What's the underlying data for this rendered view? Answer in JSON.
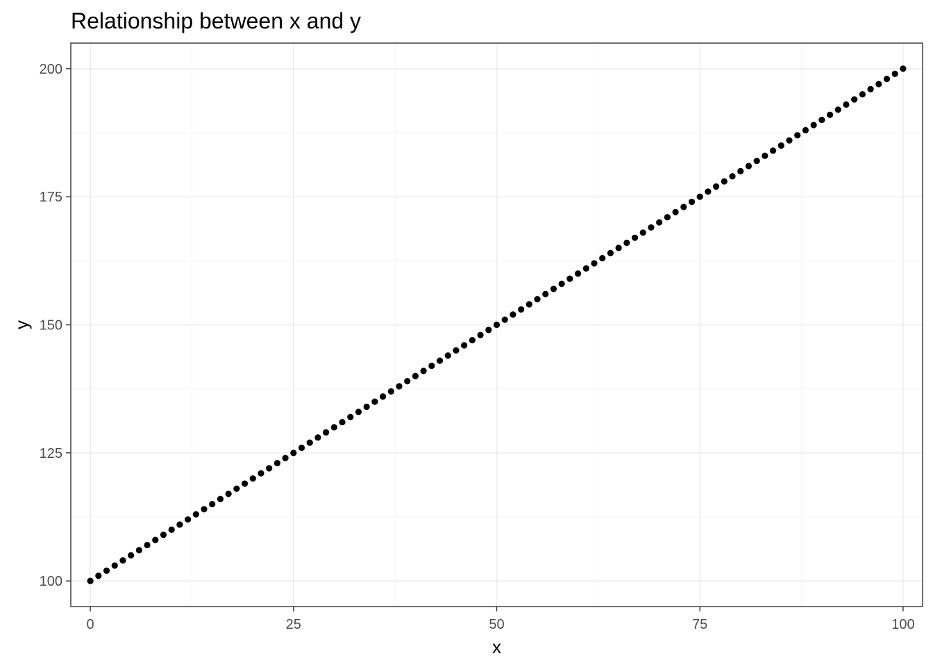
{
  "chart_data": {
    "type": "scatter",
    "title": "Relationship between x and y",
    "xlabel": "x",
    "ylabel": "y",
    "xlim": [
      -2.4,
      102.4
    ],
    "ylim": [
      95,
      205
    ],
    "x_ticks": [
      0,
      25,
      50,
      75,
      100
    ],
    "x_tick_labels": [
      "0",
      "25",
      "50",
      "75",
      "100"
    ],
    "x_minor_ticks": [
      12.5,
      37.5,
      62.5,
      87.5
    ],
    "y_ticks": [
      100,
      125,
      150,
      175,
      200
    ],
    "y_tick_labels": [
      "100",
      "125",
      "150",
      "175",
      "200"
    ],
    "y_minor_ticks": [
      112.5,
      137.5,
      162.5,
      187.5
    ],
    "grid": true,
    "legend": "none",
    "point_color": "#000000",
    "series": [
      {
        "x_start": 0,
        "x_end": 100,
        "x_step": 1,
        "relation": "y = 100 + x",
        "intercept": 100,
        "slope": 1
      }
    ]
  }
}
